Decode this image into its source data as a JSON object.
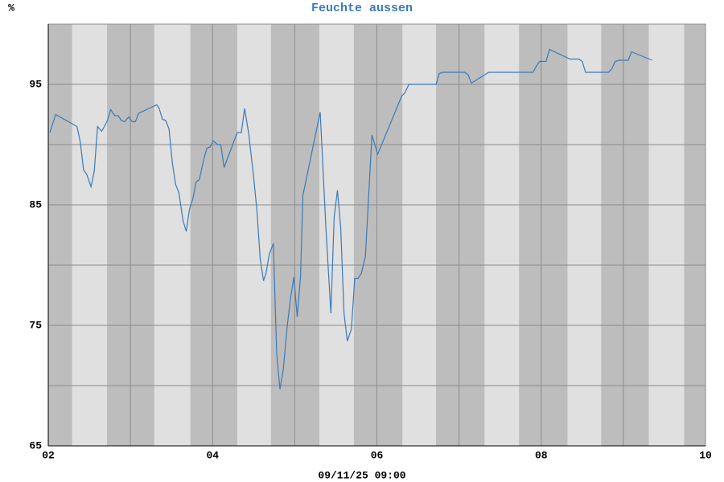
{
  "chart_data": {
    "type": "line",
    "title": "Feuchte aussen",
    "ylabel": "%",
    "xlabel": "09/11/25 09:00",
    "color": "#3a7ab8",
    "night_color": "#bdbdbd",
    "day_color": "#e0e0e0",
    "night_bands": [
      [
        2,
        2.29
      ],
      [
        2.715,
        3.29
      ],
      [
        3.73,
        4.3
      ],
      [
        4.71,
        5.3
      ],
      [
        5.72,
        6.31
      ],
      [
        6.72,
        7.31
      ],
      [
        7.73,
        8.32
      ],
      [
        8.73,
        9.31
      ],
      [
        9.74,
        10
      ]
    ],
    "xlim": [
      2,
      10
    ],
    "xticks": [
      {
        "value": 2,
        "label": "02"
      },
      {
        "value": 4,
        "label": "04"
      },
      {
        "value": 6,
        "label": "06"
      },
      {
        "value": 8,
        "label": "08"
      },
      {
        "value": 10,
        "label": "10"
      }
    ],
    "xminor": [
      3,
      5,
      7,
      9
    ],
    "ylim": [
      65,
      100
    ],
    "yticks": [
      65,
      75,
      85,
      95
    ],
    "yminor": [
      70,
      80,
      90,
      100
    ],
    "grid": true,
    "x": [
      2.02,
      2.09,
      2.35,
      2.39,
      2.43,
      2.47,
      2.52,
      2.56,
      2.6,
      2.65,
      2.69,
      2.72,
      2.76,
      2.81,
      2.85,
      2.89,
      2.93,
      2.98,
      3.02,
      3.06,
      3.1,
      3.32,
      3.35,
      3.39,
      3.43,
      3.47,
      3.51,
      3.55,
      3.59,
      3.64,
      3.68,
      3.72,
      3.76,
      3.8,
      3.84,
      3.89,
      3.93,
      3.97,
      4.01,
      4.06,
      4.1,
      4.14,
      4.3,
      4.35,
      4.39,
      4.44,
      4.5,
      4.54,
      4.58,
      4.62,
      4.65,
      4.69,
      4.74,
      4.78,
      4.82,
      4.86,
      4.91,
      4.95,
      4.99,
      5.03,
      5.07,
      5.1,
      5.31,
      5.38,
      5.44,
      5.48,
      5.52,
      5.56,
      5.6,
      5.64,
      5.69,
      5.73,
      5.77,
      5.81,
      5.86,
      5.94,
      6.01,
      6.3,
      6.34,
      6.39,
      6.72,
      6.76,
      6.8,
      7.07,
      7.11,
      7.15,
      7.36,
      7.9,
      7.94,
      7.98,
      8.06,
      8.1,
      8.35,
      8.46,
      8.5,
      8.54,
      8.82,
      8.86,
      8.9,
      8.95,
      9.06,
      9.1,
      9.35
    ],
    "values": [
      91.0,
      92.5,
      91.5,
      90.2,
      87.9,
      87.5,
      86.5,
      87.8,
      91.5,
      91.1,
      91.6,
      92.0,
      92.9,
      92.4,
      92.4,
      92.0,
      91.9,
      92.3,
      91.9,
      91.9,
      92.6,
      93.3,
      93.0,
      92.1,
      92.0,
      91.3,
      88.5,
      86.7,
      86.0,
      83.7,
      82.8,
      84.7,
      85.5,
      86.9,
      87.1,
      88.7,
      89.7,
      89.8,
      90.3,
      90.0,
      90.0,
      88.1,
      91.0,
      91.0,
      93.0,
      90.9,
      87.3,
      84.5,
      80.5,
      78.7,
      79.3,
      80.9,
      81.8,
      72.7,
      69.7,
      71.3,
      75.0,
      77.3,
      79.0,
      75.7,
      79.0,
      85.8,
      92.7,
      83.0,
      76.0,
      84.0,
      86.2,
      83.1,
      76.0,
      73.7,
      74.7,
      78.9,
      78.9,
      79.3,
      80.7,
      90.8,
      89.2,
      94.0,
      94.3,
      95.0,
      95.0,
      95.9,
      96.0,
      96.0,
      95.8,
      95.1,
      96.0,
      96.0,
      96.5,
      96.9,
      96.9,
      97.9,
      97.1,
      97.1,
      96.9,
      96.0,
      96.0,
      96.3,
      96.9,
      97.0,
      97.0,
      97.7,
      97.0
    ]
  }
}
